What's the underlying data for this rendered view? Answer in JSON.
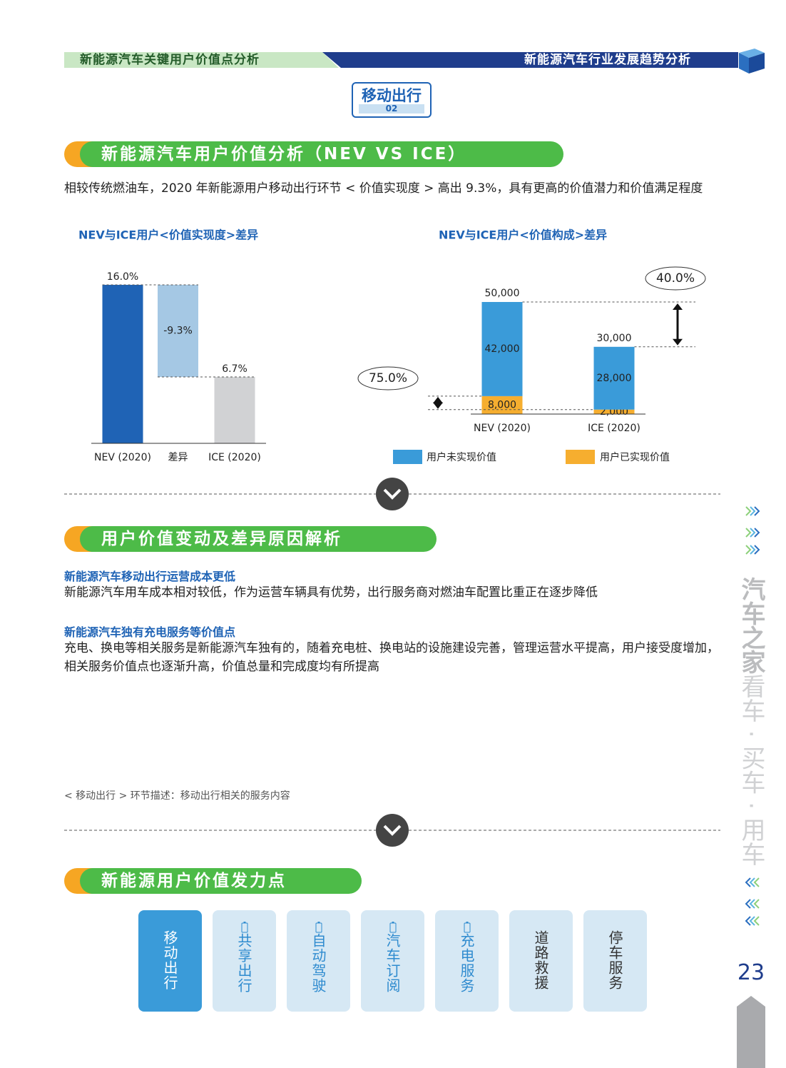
{
  "header": {
    "left": "新能源汽车关键用户价值点分析",
    "right": "新能源汽车行业发展趋势分析"
  },
  "badge": {
    "title": "移动出行",
    "number": "02"
  },
  "section1": {
    "title": "新能源汽车用户价值分析（NEV VS ICE）",
    "text": "相较传统燃油车，2020 年新能源用户移动出行环节 < 价值实现度 > 高出 9.3%，具有更高的价值潜力和价值满足程度"
  },
  "chart_data": [
    {
      "type": "waterfall",
      "title": "NEV与ICE用户<价值实现度>差异",
      "categories": [
        "NEV (2020)",
        "差异",
        "ICE (2020)"
      ],
      "values": [
        16.0,
        -9.3,
        6.7
      ],
      "value_labels": [
        "16.0%",
        "-9.3%",
        "6.7%"
      ],
      "colors": [
        "#1f63b5",
        "#a5c8e4",
        "#d1d2d4"
      ],
      "ylim": [
        0,
        16
      ]
    },
    {
      "type": "stacked_bar",
      "title": "NEV与ICE用户<价值构成>差异",
      "categories": [
        "NEV (2020)",
        "ICE (2020)"
      ],
      "series": [
        {
          "name": "用户未实现价值",
          "color": "#3a9bd9",
          "values": [
            42000,
            28000
          ],
          "value_labels": [
            "42,000",
            "28,000"
          ]
        },
        {
          "name": "用户已实现价值",
          "color": "#f6ae2f",
          "values": [
            8000,
            2000
          ],
          "value_labels": [
            "8,000",
            "2,000"
          ]
        }
      ],
      "totals": [
        50000,
        30000
      ],
      "total_labels": [
        "50,000",
        "30,000"
      ],
      "annotations": [
        "40.0%",
        "75.0%"
      ],
      "ylim": [
        0,
        50000
      ]
    }
  ],
  "section2": {
    "title": "用户价值变动及差异原因解析",
    "items": [
      {
        "heading": "新能源汽车移动出行运营成本更低",
        "text": "新能源汽车用车成本相对较低，作为运营车辆具有优势，出行服务商对燃油车配置比重正在逐步降低"
      },
      {
        "heading": "新能源汽车独有充电服务等价值点",
        "text": "充电、换电等相关服务是新能源汽车独有的，随着充电桩、换电站的设施建设完善，管理运营水平提高，用户接受度增加，相关服务价值点也逐渐升高，价值总量和完成度均有所提高"
      }
    ]
  },
  "note": "< 移动出行 > 环节描述：移动出行相关的服务内容",
  "section3": {
    "title": "新能源用户价值发力点",
    "tabs": [
      "移动出行",
      "共享出行",
      "自动驾驶",
      "汽车订阅",
      "充电服务",
      "道路救援",
      "停车服务"
    ]
  },
  "sidebar": {
    "brand": "汽车之家",
    "slogan": "看车 · 买车 · 用车"
  },
  "page_number": "23"
}
